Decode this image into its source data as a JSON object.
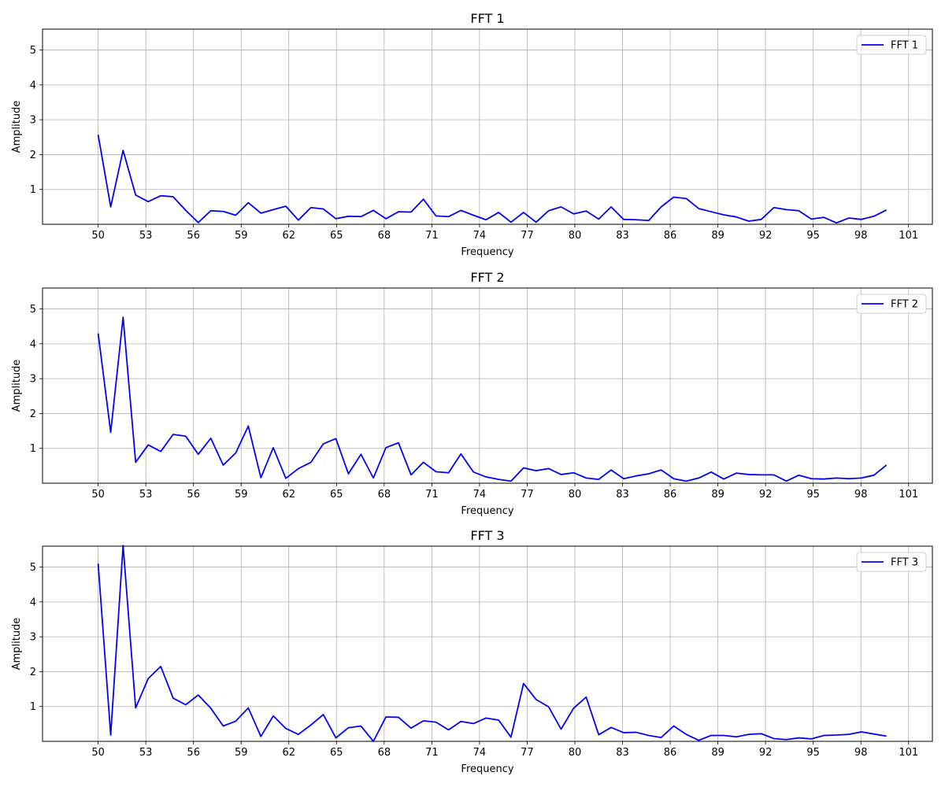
{
  "chart_data": [
    {
      "type": "line",
      "title": "FFT 1",
      "xlabel": "Frequency",
      "ylabel": "Amplitude",
      "xlim": [
        46.5,
        102.5
      ],
      "ylim": [
        0.0,
        5.6
      ],
      "xticks": [
        50,
        53,
        56,
        59,
        62,
        65,
        68,
        71,
        74,
        77,
        80,
        83,
        86,
        89,
        92,
        95,
        98,
        101
      ],
      "yticks": [
        1,
        2,
        3,
        4,
        5
      ],
      "grid": true,
      "legend_position": "top-right",
      "series": [
        {
          "name": "FFT 1",
          "color": "#0000ff",
          "x": [
            50.0,
            50.79,
            51.57,
            52.36,
            53.15,
            53.94,
            54.72,
            55.51,
            56.3,
            57.09,
            57.87,
            58.66,
            59.45,
            60.24,
            61.02,
            61.81,
            62.6,
            63.39,
            64.17,
            64.96,
            65.75,
            66.54,
            67.32,
            68.11,
            68.9,
            69.69,
            70.47,
            71.26,
            72.05,
            72.83,
            73.62,
            74.41,
            75.2,
            75.98,
            76.77,
            77.56,
            78.35,
            79.13,
            79.92,
            80.71,
            81.5,
            82.28,
            83.07,
            83.86,
            84.65,
            85.43,
            86.22,
            87.01,
            87.8,
            88.58,
            89.37,
            90.16,
            90.94,
            91.73,
            92.52,
            93.31,
            94.09,
            94.88,
            95.67,
            96.46,
            97.24,
            98.03,
            98.82,
            99.61
          ],
          "values": [
            2.57,
            0.5,
            2.12,
            0.84,
            0.65,
            0.82,
            0.79,
            0.4,
            0.05,
            0.39,
            0.37,
            0.26,
            0.62,
            0.32,
            0.42,
            0.52,
            0.12,
            0.48,
            0.44,
            0.16,
            0.23,
            0.22,
            0.4,
            0.16,
            0.36,
            0.35,
            0.72,
            0.24,
            0.22,
            0.4,
            0.26,
            0.13,
            0.34,
            0.06,
            0.34,
            0.06,
            0.39,
            0.5,
            0.3,
            0.38,
            0.15,
            0.5,
            0.14,
            0.13,
            0.11,
            0.5,
            0.78,
            0.74,
            0.45,
            0.36,
            0.27,
            0.21,
            0.09,
            0.14,
            0.48,
            0.42,
            0.39,
            0.15,
            0.2,
            0.04,
            0.18,
            0.14,
            0.23,
            0.41
          ]
        }
      ]
    },
    {
      "type": "line",
      "title": "FFT 2",
      "xlabel": "Frequency",
      "ylabel": "Amplitude",
      "xlim": [
        46.5,
        102.5
      ],
      "ylim": [
        0.0,
        5.6
      ],
      "xticks": [
        50,
        53,
        56,
        59,
        62,
        65,
        68,
        71,
        74,
        77,
        80,
        83,
        86,
        89,
        92,
        95,
        98,
        101
      ],
      "yticks": [
        1,
        2,
        3,
        4,
        5
      ],
      "grid": true,
      "legend_position": "top-right",
      "series": [
        {
          "name": "FFT 2",
          "color": "#0000ff",
          "x": [
            50.0,
            50.79,
            51.57,
            52.36,
            53.15,
            53.94,
            54.72,
            55.51,
            56.3,
            57.09,
            57.87,
            58.66,
            59.45,
            60.24,
            61.02,
            61.81,
            62.6,
            63.39,
            64.17,
            64.96,
            65.75,
            66.54,
            67.32,
            68.11,
            68.9,
            69.69,
            70.47,
            71.26,
            72.05,
            72.83,
            73.62,
            74.41,
            75.2,
            75.98,
            76.77,
            77.56,
            78.35,
            79.13,
            79.92,
            80.71,
            81.5,
            82.28,
            83.07,
            83.86,
            84.65,
            85.43,
            86.22,
            87.01,
            87.8,
            88.58,
            89.37,
            90.16,
            90.94,
            91.73,
            92.52,
            93.31,
            94.09,
            94.88,
            95.67,
            96.46,
            97.24,
            98.03,
            98.82,
            99.61
          ],
          "values": [
            4.3,
            1.46,
            4.76,
            0.6,
            1.1,
            0.91,
            1.4,
            1.35,
            0.83,
            1.29,
            0.52,
            0.87,
            1.64,
            0.16,
            1.02,
            0.14,
            0.42,
            0.6,
            1.13,
            1.28,
            0.27,
            0.83,
            0.15,
            1.02,
            1.16,
            0.24,
            0.6,
            0.33,
            0.3,
            0.84,
            0.32,
            0.18,
            0.11,
            0.06,
            0.44,
            0.36,
            0.42,
            0.25,
            0.3,
            0.15,
            0.11,
            0.38,
            0.13,
            0.21,
            0.27,
            0.38,
            0.13,
            0.06,
            0.15,
            0.32,
            0.12,
            0.29,
            0.25,
            0.24,
            0.24,
            0.06,
            0.23,
            0.13,
            0.12,
            0.15,
            0.13,
            0.15,
            0.23,
            0.52
          ]
        }
      ]
    },
    {
      "type": "line",
      "title": "FFT 3",
      "xlabel": "Frequency",
      "ylabel": "Amplitude",
      "xlim": [
        46.5,
        102.5
      ],
      "ylim": [
        0.0,
        5.6
      ],
      "xticks": [
        50,
        53,
        56,
        59,
        62,
        65,
        68,
        71,
        74,
        77,
        80,
        83,
        86,
        89,
        92,
        95,
        98,
        101
      ],
      "yticks": [
        1,
        2,
        3,
        4,
        5
      ],
      "grid": true,
      "legend_position": "top-right",
      "series": [
        {
          "name": "FFT 3",
          "color": "#0000ff",
          "x": [
            50.0,
            50.79,
            51.57,
            52.36,
            53.15,
            53.94,
            54.72,
            55.51,
            56.3,
            57.09,
            57.87,
            58.66,
            59.45,
            60.24,
            61.02,
            61.81,
            62.6,
            63.39,
            64.17,
            64.96,
            65.75,
            66.54,
            67.32,
            68.11,
            68.9,
            69.69,
            70.47,
            71.26,
            72.05,
            72.83,
            73.62,
            74.41,
            75.2,
            75.98,
            76.77,
            77.56,
            78.35,
            79.13,
            79.92,
            80.71,
            81.5,
            82.28,
            83.07,
            83.86,
            84.65,
            85.43,
            86.22,
            87.01,
            87.8,
            88.58,
            89.37,
            90.16,
            90.94,
            91.73,
            92.52,
            93.31,
            94.09,
            94.88,
            95.67,
            96.46,
            97.24,
            98.03,
            98.82,
            99.61
          ],
          "values": [
            5.1,
            0.18,
            5.62,
            0.96,
            1.8,
            2.15,
            1.24,
            1.05,
            1.33,
            0.95,
            0.44,
            0.58,
            0.96,
            0.14,
            0.73,
            0.37,
            0.2,
            0.47,
            0.77,
            0.1,
            0.39,
            0.44,
            0.0,
            0.7,
            0.69,
            0.38,
            0.59,
            0.55,
            0.33,
            0.57,
            0.51,
            0.67,
            0.61,
            0.12,
            1.66,
            1.2,
            0.99,
            0.35,
            0.95,
            1.27,
            0.19,
            0.4,
            0.25,
            0.26,
            0.17,
            0.11,
            0.44,
            0.2,
            0.03,
            0.17,
            0.17,
            0.13,
            0.2,
            0.22,
            0.08,
            0.05,
            0.1,
            0.07,
            0.17,
            0.18,
            0.2,
            0.27,
            0.21,
            0.15
          ]
        }
      ]
    }
  ]
}
